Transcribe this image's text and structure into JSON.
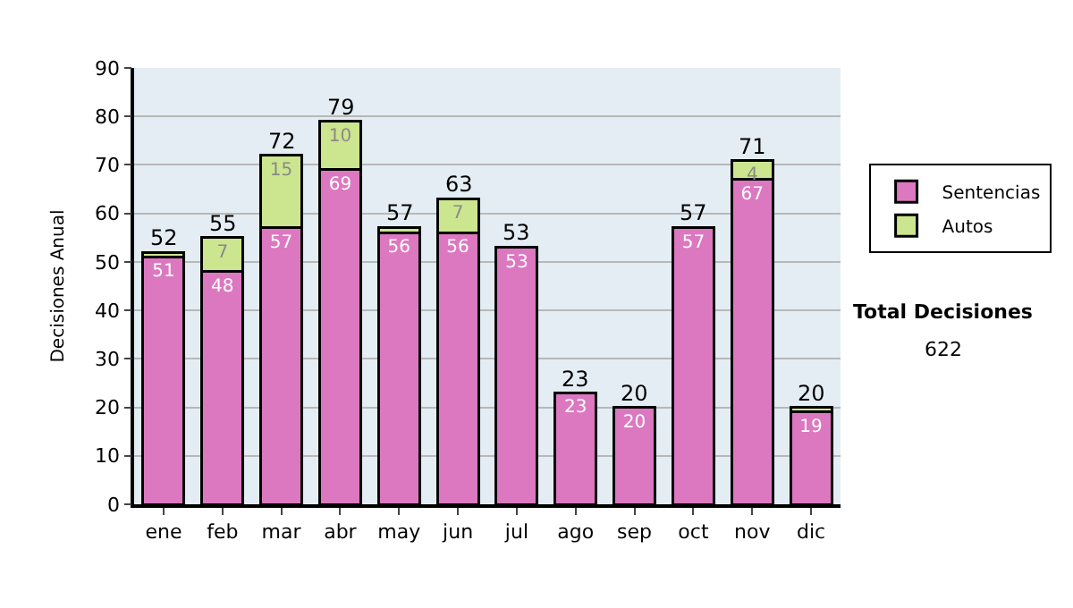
{
  "chart_data": {
    "type": "bar",
    "stacked": true,
    "ylabel": "Decisiones Anual",
    "categories": [
      "ene",
      "feb",
      "mar",
      "abr",
      "may",
      "jun",
      "jul",
      "ago",
      "sep",
      "oct",
      "nov",
      "dic"
    ],
    "series": [
      {
        "name": "Sentencias",
        "color": "#dc78c0",
        "values": [
          51,
          48,
          57,
          69,
          56,
          56,
          53,
          23,
          20,
          57,
          67,
          19
        ],
        "value_labels": [
          "51",
          "48",
          "57",
          "69",
          "56",
          "56",
          "53",
          "23",
          "20",
          "57",
          "67",
          "19"
        ]
      },
      {
        "name": "Autos",
        "color": "#cce58f",
        "values": [
          1,
          7,
          15,
          10,
          1,
          7,
          null,
          null,
          null,
          null,
          4,
          1
        ],
        "value_labels": [
          null,
          "7",
          "15",
          "10",
          null,
          "7",
          null,
          null,
          null,
          null,
          "4",
          null
        ]
      }
    ],
    "totals": [
      "52",
      "55",
      "72",
      "79",
      "57",
      "63",
      "53",
      "23",
      "20",
      "57",
      "71",
      "20"
    ],
    "ylim": [
      0,
      90
    ],
    "yticks": [
      0,
      10,
      20,
      30,
      40,
      50,
      60,
      70,
      80,
      90
    ],
    "grid": "y",
    "legend": "right",
    "annotations": [
      "Total Decisiones",
      "622"
    ]
  }
}
